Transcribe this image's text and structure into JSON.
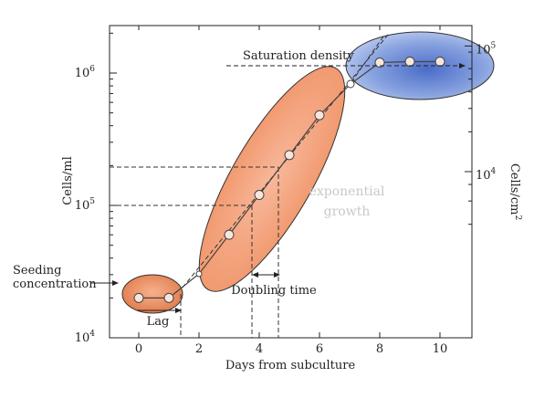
{
  "chart_data": {
    "type": "scatter",
    "xlabel": "Days from subculture",
    "ylabel_left": "Cells/ml",
    "ylabel_right": "Cells/cm",
    "ylabel_right_exp": "2",
    "xlim": [
      -1,
      11
    ],
    "ylim_log10": [
      4,
      6.5
    ],
    "x_ticks": [
      0,
      2,
      4,
      6,
      8,
      10
    ],
    "x_tick_labels": [
      "0",
      "2",
      "4",
      "6",
      "8",
      "10"
    ],
    "y_left_ticks": [
      {
        "value": 10000,
        "base": "10",
        "exp": "4"
      },
      {
        "value": 100000,
        "base": "10",
        "exp": "5"
      },
      {
        "value": 1000000,
        "base": "10",
        "exp": "6"
      }
    ],
    "y_right_ticks": [
      {
        "value_cells_ml": 180000,
        "base": "10",
        "exp": "4"
      },
      {
        "value_cells_ml": 1600000,
        "base": "10",
        "exp": "5"
      }
    ],
    "series": [
      {
        "x": [
          0,
          1,
          3,
          4,
          5,
          6,
          8,
          9,
          10
        ],
        "y": [
          20000,
          20000,
          60000,
          120000,
          240000,
          480000,
          1200000,
          1220000,
          1220000
        ]
      }
    ],
    "annotations": {
      "saturation": "Saturation density",
      "exponential_line1": "exponential",
      "exponential_line2": "growth",
      "doubling": "Doubling time",
      "lag": "Lag",
      "seeding_line1": "Seeding",
      "seeding_line2": "concentration"
    },
    "colors": {
      "lag_phase": "#e8875a",
      "exponential_phase": "#f4a27c",
      "saturation_phase": "#6f8fd6",
      "points_fill": "#f8e6dc",
      "line": "#444444"
    }
  }
}
